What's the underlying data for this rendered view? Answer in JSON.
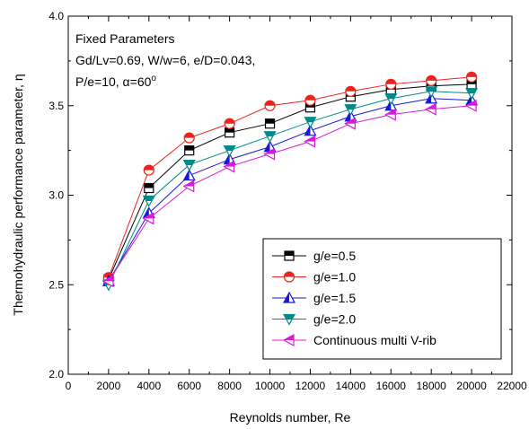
{
  "chart_data": {
    "type": "line",
    "xlabel": "Reynolds number, Re",
    "ylabel": "Thermohydraulic performance parameter, η",
    "xlim": [
      0,
      22000
    ],
    "ylim": [
      2.0,
      4.0
    ],
    "xticks": [
      "0",
      "2000",
      "4000",
      "6000",
      "8000",
      "10000",
      "12000",
      "14000",
      "16000",
      "18000",
      "20000",
      "22000"
    ],
    "yticks": [
      "2.0",
      "2.5",
      "3.0",
      "3.5",
      "4.0"
    ],
    "x": [
      2000,
      4000,
      6000,
      8000,
      10000,
      12000,
      14000,
      16000,
      18000,
      20000
    ],
    "annotation": {
      "line1": "Fixed Parameters",
      "line2": "Gd/Lv=0.69, W/w=6, e/D=0.043,",
      "line3_prefix": "P/e=10, ",
      "line3_alpha": "α",
      "line3_value": "=60",
      "line3_degree": "o"
    },
    "legend_position": "lower-right",
    "series": [
      {
        "name": "g/e=0.5",
        "marker": "square",
        "color": "#000000",
        "values": [
          2.53,
          3.04,
          3.25,
          3.35,
          3.4,
          3.49,
          3.55,
          3.59,
          3.61,
          3.62
        ]
      },
      {
        "name": "g/e=1.0",
        "marker": "circle",
        "color": "#e8241c",
        "values": [
          2.54,
          3.14,
          3.32,
          3.4,
          3.5,
          3.53,
          3.58,
          3.62,
          3.64,
          3.66
        ]
      },
      {
        "name": "g/e=1.5",
        "marker": "triangle-up",
        "color": "#1818d8",
        "values": [
          2.52,
          2.9,
          3.11,
          3.2,
          3.27,
          3.36,
          3.44,
          3.5,
          3.54,
          3.53
        ]
      },
      {
        "name": "g/e=2.0",
        "marker": "triangle-down",
        "color": "#008b8b",
        "values": [
          2.5,
          2.97,
          3.17,
          3.25,
          3.33,
          3.41,
          3.48,
          3.54,
          3.58,
          3.57
        ]
      },
      {
        "name": "Continuous multi V-rib",
        "marker": "triangle-left",
        "color": "#d81bd8",
        "values": [
          2.52,
          2.87,
          3.05,
          3.16,
          3.23,
          3.3,
          3.4,
          3.45,
          3.48,
          3.5
        ]
      }
    ]
  }
}
